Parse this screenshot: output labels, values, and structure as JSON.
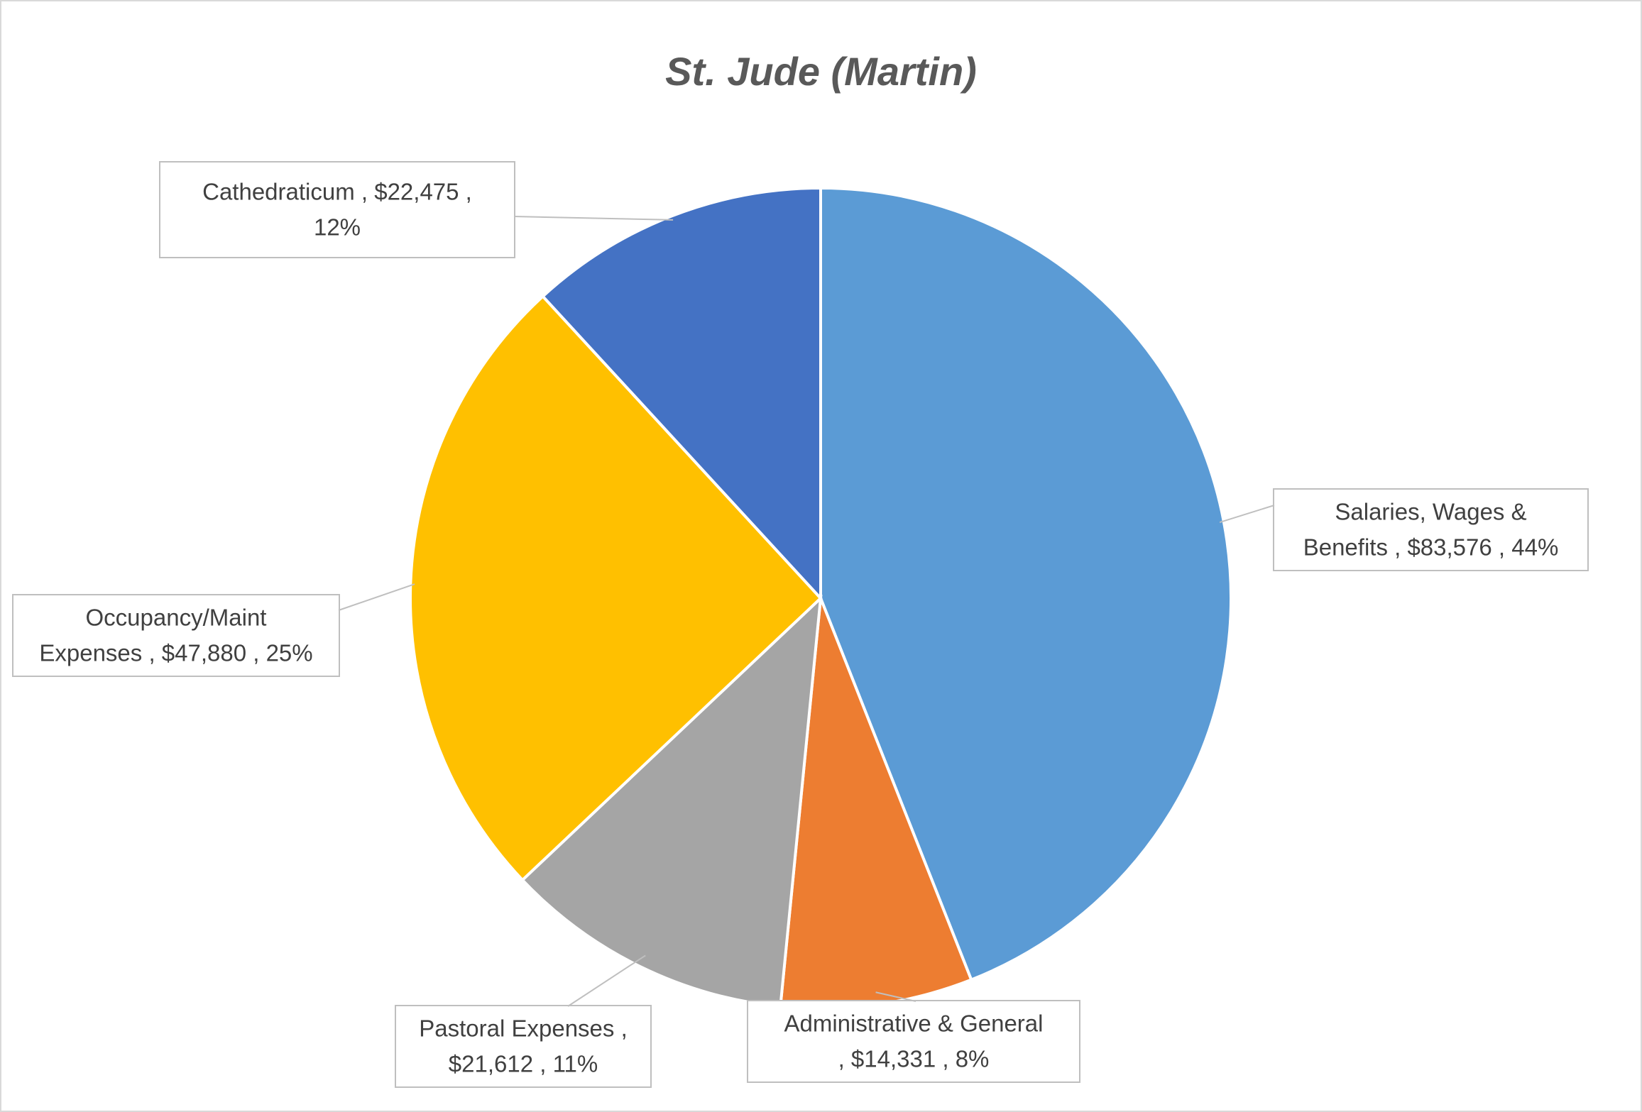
{
  "chart_data": {
    "type": "pie",
    "title": "St. Jude (Martin)",
    "categories": [
      "Salaries, Wages & Benefits",
      "Administrative & General",
      "Pastoral Expenses",
      "Occupancy/Maint Expenses",
      "Cathedraticum"
    ],
    "values": [
      83576,
      14331,
      21612,
      47880,
      22475
    ],
    "percent_labels": [
      "44%",
      "8%",
      "11%",
      "25%",
      "12%"
    ],
    "value_labels": [
      "$83,576",
      "$14,331",
      "$21,612",
      "$47,880",
      "$22,475"
    ],
    "colors": [
      "#5B9BD5",
      "#ED7D31",
      "#A5A5A5",
      "#FFC000",
      "#4472C4"
    ],
    "data_labels": [
      [
        "Salaries, Wages &",
        "Benefits ,  $83,576 , 44%"
      ],
      [
        "Administrative & General",
        ",  $14,331 , 8%"
      ],
      [
        "Pastoral Expenses ,",
        "$21,612 , 11%"
      ],
      [
        "Occupancy/Maint",
        "Expenses ,  $47,880 , 25%"
      ],
      [
        "Cathedraticum ,  $22,475 ,",
        "12%"
      ]
    ],
    "legend": "none"
  }
}
